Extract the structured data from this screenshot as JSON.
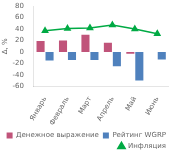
{
  "chart_data": {
    "type": "bar",
    "categories": [
      "Январь",
      "Февраль",
      "Март",
      "Апрель",
      "Май",
      "Июнь"
    ],
    "series": [
      {
        "name": "Денежное выражение",
        "color": "#c0547a",
        "values": [
          19,
          20,
          30,
          16,
          -3,
          0
        ]
      },
      {
        "name": "Рейтинг WGRP",
        "color": "#4f81bd",
        "values": [
          -15,
          -14,
          -14,
          -25,
          -50,
          -13
        ]
      },
      {
        "name": "Инфляция",
        "color": "#00aa44",
        "values": [
          37,
          41,
          42,
          47,
          40,
          32
        ],
        "type": "line",
        "marker": "triangle"
      }
    ],
    "ylabel": "Δ, %",
    "ylim": [
      -60,
      80
    ],
    "yticks": [
      -60,
      -40,
      -20,
      0,
      20,
      40,
      60,
      80
    ],
    "grid": false,
    "legend": "lower right"
  }
}
